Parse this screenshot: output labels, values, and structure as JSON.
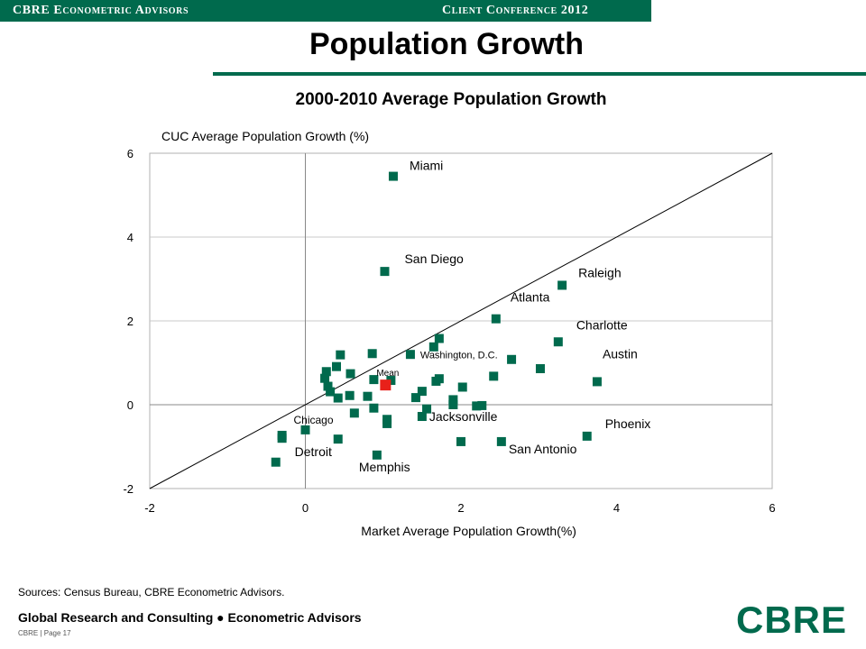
{
  "header": {
    "company": "CBRE Econometric Advisors",
    "event": "Client Conference 2012"
  },
  "page_title": "Population Growth",
  "chart_data": {
    "type": "scatter",
    "title": "2000-2010 Average Population Growth",
    "xlabel": "Market Average  Population Growth(%)",
    "ylabel": "CUC Average Population Growth (%)",
    "xlim": [
      -2,
      6
    ],
    "ylim": [
      -2,
      6
    ],
    "xticks": [
      -2,
      0,
      2,
      4,
      6
    ],
    "yticks": [
      -2,
      0,
      2,
      4,
      6
    ],
    "grid": "horizontal",
    "reference_line": "y = x",
    "colors": {
      "marker": "#006a4d",
      "mean_marker": "#e8211a",
      "line": "#000000",
      "grid": "#c8c8c8"
    },
    "labeled_points": [
      {
        "label": "Miami",
        "x": 1.13,
        "y": 5.45
      },
      {
        "label": "San Diego",
        "x": 1.02,
        "y": 3.18
      },
      {
        "label": "Raleigh",
        "x": 3.3,
        "y": 2.85
      },
      {
        "label": "Atlanta",
        "x": 2.45,
        "y": 2.05
      },
      {
        "label": "Charlotte",
        "x": 3.25,
        "y": 1.5
      },
      {
        "label": "Washington, D.C.",
        "x": 1.72,
        "y": 1.58
      },
      {
        "label": "Austin",
        "x": 3.75,
        "y": 0.55
      },
      {
        "label": "Phoenix",
        "x": 3.62,
        "y": -0.75
      },
      {
        "label": "Jacksonville",
        "x": 1.5,
        "y": -0.28
      },
      {
        "label": "San Antonio",
        "x": 2.52,
        "y": -0.88
      },
      {
        "label": "Memphis",
        "x": 0.92,
        "y": -1.2
      },
      {
        "label": "Detroit",
        "x": -0.3,
        "y": -0.8
      },
      {
        "label": "Chicago",
        "x": 0.0,
        "y": -0.6
      }
    ],
    "mean_point": {
      "label": "Mean",
      "x": 1.03,
      "y": 0.47
    },
    "points": [
      [
        0.25,
        0.63
      ],
      [
        0.27,
        0.79
      ],
      [
        0.29,
        0.44
      ],
      [
        0.32,
        0.31
      ],
      [
        0.4,
        0.91
      ],
      [
        0.42,
        0.16
      ],
      [
        0.45,
        1.19
      ],
      [
        0.57,
        0.22
      ],
      [
        0.58,
        0.74
      ],
      [
        0.63,
        -0.2
      ],
      [
        0.8,
        0.2
      ],
      [
        0.86,
        1.22
      ],
      [
        0.88,
        0.6
      ],
      [
        0.88,
        -0.08
      ],
      [
        1.05,
        -0.35
      ],
      [
        1.05,
        -0.45
      ],
      [
        1.1,
        0.58
      ],
      [
        1.35,
        1.2
      ],
      [
        1.42,
        0.17
      ],
      [
        1.5,
        0.32
      ],
      [
        1.56,
        -0.1
      ],
      [
        1.65,
        1.38
      ],
      [
        1.68,
        0.56
      ],
      [
        1.72,
        0.62
      ],
      [
        1.9,
        0.12
      ],
      [
        1.9,
        0.0
      ],
      [
        2.02,
        0.42
      ],
      [
        2.2,
        -0.03
      ],
      [
        2.27,
        -0.02
      ],
      [
        2.42,
        0.68
      ],
      [
        2.65,
        1.08
      ],
      [
        3.02,
        0.86
      ],
      [
        0.42,
        -0.82
      ],
      [
        -0.38,
        -1.37
      ],
      [
        -0.3,
        -0.73
      ],
      [
        2.0,
        -0.88
      ]
    ]
  },
  "sources": "Sources: Census Bureau, CBRE Econometric Advisors.",
  "footer": {
    "line": "Global Research and Consulting ● Econometric Advisors",
    "page": "CBRE | Page 17",
    "logo": "CBRE"
  }
}
